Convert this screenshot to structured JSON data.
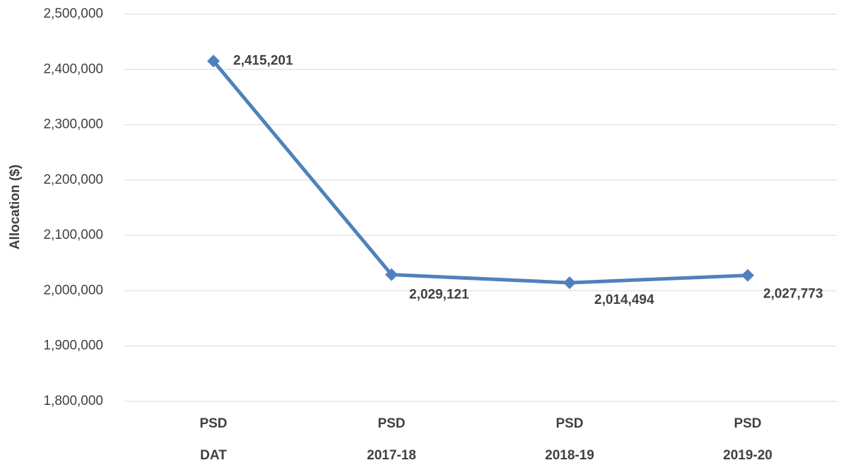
{
  "chart_data": {
    "type": "line",
    "y_label": "Allocation ($)",
    "categories": [
      [
        "PSD",
        "DAT"
      ],
      [
        "PSD",
        "2017-18"
      ],
      [
        "PSD",
        "2018-19"
      ],
      [
        "PSD",
        "2019-20"
      ]
    ],
    "series": [
      {
        "name": "Allocation",
        "color": "#4f81bd",
        "values": [
          2415201,
          2029121,
          2014494,
          2027773
        ],
        "value_labels": [
          "2,415,201",
          "2,029,121",
          "2,014,494",
          "2,027,773"
        ]
      }
    ],
    "ylim": [
      1800000,
      2500000
    ],
    "yticks": [
      {
        "value": 1800000,
        "label": "1,800,000"
      },
      {
        "value": 1900000,
        "label": "1,900,000"
      },
      {
        "value": 2000000,
        "label": "2,000,000"
      },
      {
        "value": 2100000,
        "label": "2,100,000"
      },
      {
        "value": 2200000,
        "label": "2,200,000"
      },
      {
        "value": 2300000,
        "label": "2,300,000"
      },
      {
        "value": 2400000,
        "label": "2,400,000"
      },
      {
        "value": 2500000,
        "label": "2,500,000"
      }
    ],
    "grid": true
  }
}
